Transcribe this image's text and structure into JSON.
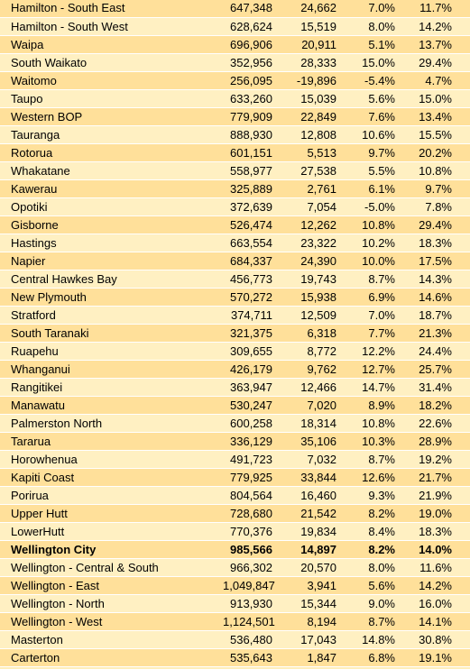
{
  "table": {
    "rows": [
      [
        "Hamilton - South East",
        "647,348",
        "24,662",
        "7.0%",
        "11.7%"
      ],
      [
        "Hamilton - South West",
        "628,624",
        "15,519",
        "8.0%",
        "14.2%"
      ],
      [
        "Waipa",
        "696,906",
        "20,911",
        "5.1%",
        "13.7%"
      ],
      [
        "South Waikato",
        "352,956",
        "28,333",
        "15.0%",
        "29.4%"
      ],
      [
        "Waitomo",
        "256,095",
        "-19,896",
        "-5.4%",
        "4.7%"
      ],
      [
        "Taupo",
        "633,260",
        "15,039",
        "5.6%",
        "15.0%"
      ],
      [
        "Western BOP",
        "779,909",
        "22,849",
        "7.6%",
        "13.4%"
      ],
      [
        "Tauranga",
        "888,930",
        "12,808",
        "10.6%",
        "15.5%"
      ],
      [
        "Rotorua",
        "601,151",
        "5,513",
        "9.7%",
        "20.2%"
      ],
      [
        "Whakatane",
        "558,977",
        "27,538",
        "5.5%",
        "10.8%"
      ],
      [
        "Kawerau",
        "325,889",
        "2,761",
        "6.1%",
        "9.7%"
      ],
      [
        "Opotiki",
        "372,639",
        "7,054",
        "-5.0%",
        "7.8%"
      ],
      [
        "Gisborne",
        "526,474",
        "12,262",
        "10.8%",
        "29.4%"
      ],
      [
        "Hastings",
        "663,554",
        "23,322",
        "10.2%",
        "18.3%"
      ],
      [
        "Napier",
        "684,337",
        "24,390",
        "10.0%",
        "17.5%"
      ],
      [
        "Central Hawkes Bay",
        "456,773",
        "19,743",
        "8.7%",
        "14.3%"
      ],
      [
        "New Plymouth",
        "570,272",
        "15,938",
        "6.9%",
        "14.6%"
      ],
      [
        "Stratford",
        "374,711",
        "12,509",
        "7.0%",
        "18.7%"
      ],
      [
        "South Taranaki",
        "321,375",
        "6,318",
        "7.7%",
        "21.3%"
      ],
      [
        "Ruapehu",
        "309,655",
        "8,772",
        "12.2%",
        "24.4%"
      ],
      [
        "Whanganui",
        "426,179",
        "9,762",
        "12.7%",
        "25.7%"
      ],
      [
        "Rangitikei",
        "363,947",
        "12,466",
        "14.7%",
        "31.4%"
      ],
      [
        "Manawatu",
        "530,247",
        "7,020",
        "8.9%",
        "18.2%"
      ],
      [
        "Palmerston North",
        "600,258",
        "18,314",
        "10.8%",
        "22.6%"
      ],
      [
        "Tararua",
        "336,129",
        "35,106",
        "10.3%",
        "28.9%"
      ],
      [
        "Horowhenua",
        "491,723",
        "7,032",
        "8.7%",
        "19.2%"
      ],
      [
        "Kapiti Coast",
        "779,925",
        "33,844",
        "12.6%",
        "21.7%"
      ],
      [
        "Porirua",
        "804,564",
        "16,460",
        "9.3%",
        "21.9%"
      ],
      [
        "Upper Hutt",
        "728,680",
        "21,542",
        "8.2%",
        "19.0%"
      ],
      [
        "LowerHutt",
        "770,376",
        "19,834",
        "8.4%",
        "18.3%"
      ],
      [
        "Wellington City",
        "985,566",
        "14,897",
        "8.2%",
        "14.0%"
      ],
      [
        "Wellington - Central & South",
        "966,302",
        "20,570",
        "8.0%",
        "11.6%"
      ],
      [
        "Wellington - East",
        "1,049,847",
        "3,941",
        "5.6%",
        "14.2%"
      ],
      [
        "Wellington - North",
        "913,930",
        "15,344",
        "9.0%",
        "16.0%"
      ],
      [
        "Wellington - West",
        "1,124,501",
        "8,194",
        "8.7%",
        "14.1%"
      ],
      [
        "Masterton",
        "536,480",
        "17,043",
        "14.8%",
        "30.8%"
      ],
      [
        "Carterton",
        "535,643",
        "1,847",
        "6.8%",
        "19.1%"
      ]
    ],
    "bold_row_names": [
      "Wellington City"
    ]
  }
}
